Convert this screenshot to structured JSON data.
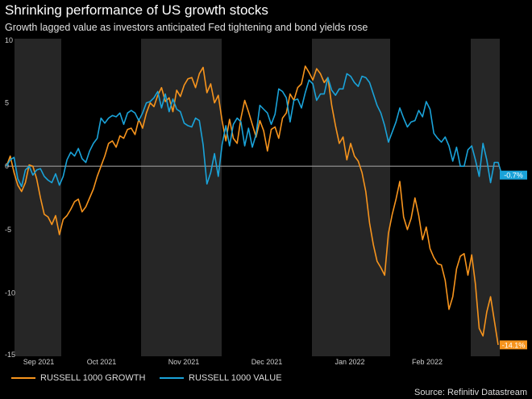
{
  "header": {
    "title": "Shrinking performance of US growth stocks",
    "subtitle": "Growth lagged value as investors anticipated Fed tightening and bond yields rose"
  },
  "source": "Source: Refinitiv Datastream",
  "colors": {
    "growth": "#f7941d",
    "value": "#1aa3d9",
    "band": "#262626",
    "zero": "#9a9a9a",
    "axis_text": "#cfcfcf"
  },
  "chart_data": {
    "type": "line",
    "title": "Shrinking performance of US growth stocks",
    "xlabel": "",
    "ylabel": "",
    "ylim": [
      -15,
      10
    ],
    "yticks": [
      "10",
      "5",
      "0",
      "-5",
      "-10",
      "-15"
    ],
    "month_labels": [
      "Sep 2021",
      "Oct 2021",
      "Nov 2021",
      "Dec 2021",
      "Jan 2022",
      "Feb 2022"
    ],
    "legend": [
      "RUSSELL 1000 GROWTH",
      "RUSSELL 1000 VALUE"
    ],
    "end_labels": [
      "-14.1%",
      "-0.7%"
    ],
    "series": [
      {
        "name": "RUSSELL 1000 GROWTH",
        "values": [
          0,
          0.8,
          -0.5,
          -1.5,
          -2,
          -1.3,
          0.1,
          0,
          -1,
          -2.5,
          -3.8,
          -4,
          -4.6,
          -3.9,
          -5.4,
          -4.2,
          -3.9,
          -3.4,
          -2.8,
          -2.6,
          -3.6,
          -3.2,
          -2.5,
          -1.8,
          -0.8,
          0,
          0.8,
          1.8,
          2,
          1.5,
          2.4,
          2.2,
          2.9,
          3,
          2.5,
          3.7,
          3,
          4.2,
          5,
          4.7,
          5.6,
          6.2,
          5.1,
          5.4,
          4.3,
          6,
          5.5,
          6.4,
          6.9,
          7,
          6.2,
          7.3,
          7.8,
          5.8,
          6.5,
          5,
          5.6,
          3.6,
          2,
          3.7,
          2.2,
          1.8,
          3.8,
          5.2,
          4.3,
          3.3,
          2.3,
          3.6,
          2.8,
          1.2,
          2.9,
          3.1,
          2.2,
          3.8,
          4.2,
          5.7,
          5.2,
          6.2,
          6.5,
          7.9,
          7.4,
          6.8,
          7.7,
          7.3,
          6.6,
          7,
          4.8,
          3.2,
          1.8,
          2.3,
          0.5,
          1.8,
          0.8,
          0.4,
          -0.5,
          -2,
          -4.5,
          -6.2,
          -7.5,
          -8,
          -8.6,
          -5.3,
          -3.8,
          -2.6,
          -1.2,
          -4,
          -5,
          -4.1,
          -2.5,
          -3.9,
          -5.8,
          -4.8,
          -6.5,
          -7.2,
          -7.7,
          -7.8,
          -9,
          -11.3,
          -10.3,
          -8.1,
          -7.1,
          -6.9,
          -8.6,
          -7,
          -9.3,
          -12.8,
          -13.4,
          -11.5,
          -10.3,
          -12.2,
          -14.1
        ]
      },
      {
        "name": "RUSSELL 1000 VALUE",
        "values": [
          0,
          0.5,
          0.7,
          -1,
          -1.6,
          -0.3,
          0,
          -0.7,
          -0.3,
          -0.2,
          -0.8,
          -1.1,
          -1.3,
          -0.6,
          -1.5,
          -0.8,
          0.5,
          1.1,
          0.8,
          1.4,
          0.6,
          0.3,
          1.2,
          1.8,
          2.2,
          3.8,
          3.4,
          3.8,
          4,
          3.9,
          4.2,
          3.3,
          4.2,
          4.4,
          4.2,
          3.6,
          4.2,
          5,
          5.1,
          5.4,
          5.9,
          4.6,
          5.7,
          4.3,
          5.3,
          4.5,
          4.3,
          3.4,
          3.2,
          3.1,
          3.8,
          3.6,
          1.7,
          -1.4,
          -0.5,
          1,
          -0.8,
          1.7,
          3.2,
          1.6,
          3.3,
          3.8,
          3.5,
          1.6,
          3,
          1.5,
          2.5,
          4.8,
          4.5,
          4.2,
          3.3,
          4.1,
          6.1,
          5.9,
          5.4,
          3.5,
          5.2,
          5.3,
          4.6,
          5.8,
          6.8,
          6.5,
          5.2,
          5.7,
          5.7,
          7,
          6,
          5.6,
          6.1,
          6.1,
          7.3,
          7.1,
          6.6,
          6.3,
          7.1,
          7,
          6.6,
          5.7,
          4.8,
          4.2,
          3.2,
          1.9,
          2.7,
          3.5,
          4.6,
          3.8,
          3.1,
          3.5,
          3.6,
          4.4,
          3.9,
          5.1,
          4.5,
          2.6,
          2.2,
          1.9,
          2.3,
          1.6,
          0.4,
          1.5,
          0,
          0,
          1.3,
          1.6,
          0.5,
          -0.8,
          1.8,
          0.5,
          -1.3,
          0.3,
          0.3,
          -0.7
        ]
      }
    ]
  }
}
